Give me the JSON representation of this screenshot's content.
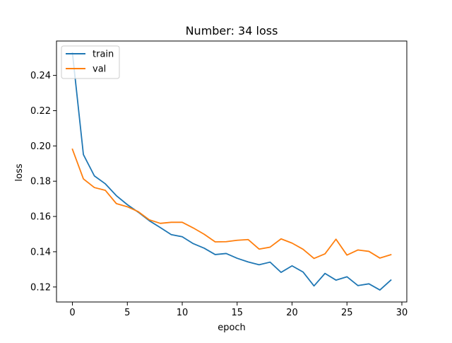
{
  "chart_data": {
    "type": "line",
    "title": "Number: 34 loss",
    "xlabel": "epoch",
    "ylabel": "loss",
    "xlim": [
      -1.45,
      30.45
    ],
    "ylim": [
      0.1115,
      0.2595
    ],
    "xticks": [
      0,
      5,
      10,
      15,
      20,
      25,
      30
    ],
    "yticks": [
      0.12,
      0.14,
      0.16,
      0.18,
      0.2,
      0.22,
      0.24
    ],
    "ytick_labels": [
      "0.12",
      "0.14",
      "0.16",
      "0.18",
      "0.20",
      "0.22",
      "0.24"
    ],
    "grid": false,
    "legend_position": "top-left",
    "x": [
      0,
      1,
      2,
      3,
      4,
      5,
      6,
      7,
      8,
      9,
      10,
      11,
      12,
      13,
      14,
      15,
      16,
      17,
      18,
      19,
      20,
      21,
      22,
      23,
      24,
      25,
      26,
      27,
      28,
      29
    ],
    "series": [
      {
        "name": "train",
        "color": "#1f77b4",
        "values": [
          0.2528,
          0.1951,
          0.183,
          0.1785,
          0.1718,
          0.1667,
          0.1624,
          0.1576,
          0.1537,
          0.1497,
          0.1485,
          0.1446,
          0.142,
          0.1384,
          0.139,
          0.1363,
          0.1342,
          0.1326,
          0.1341,
          0.1283,
          0.132,
          0.1285,
          0.1206,
          0.1277,
          0.1239,
          0.1258,
          0.1208,
          0.1218,
          0.1183,
          0.1239
        ]
      },
      {
        "name": "val",
        "color": "#ff7f0e",
        "values": [
          0.1981,
          0.1813,
          0.1764,
          0.1748,
          0.1673,
          0.1655,
          0.1627,
          0.1581,
          0.1561,
          0.1567,
          0.1567,
          0.1535,
          0.1499,
          0.1456,
          0.1457,
          0.1465,
          0.1469,
          0.1415,
          0.1426,
          0.1473,
          0.1449,
          0.1414,
          0.1362,
          0.1388,
          0.1471,
          0.1381,
          0.141,
          0.1402,
          0.1364,
          0.1383
        ]
      }
    ]
  }
}
